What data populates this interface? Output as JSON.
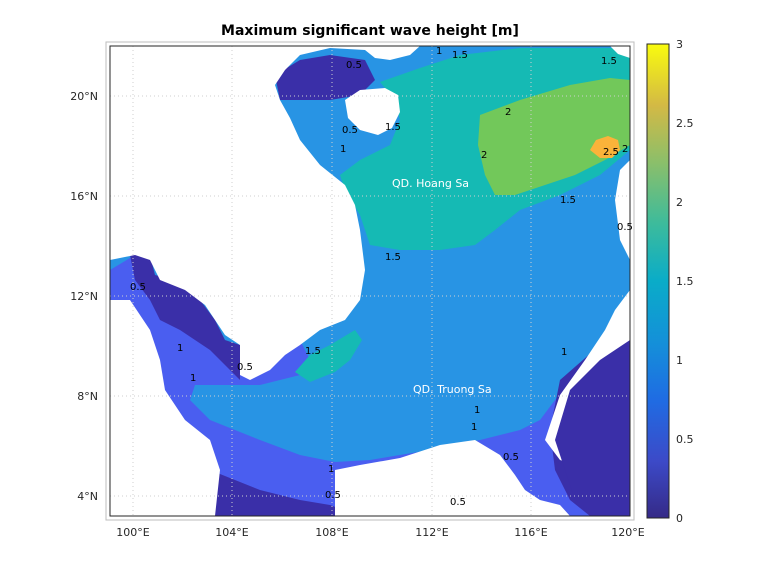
{
  "map": {
    "title": "Maximum significant wave height [m]",
    "lon_ticks": [
      "100°E",
      "104°E",
      "108°E",
      "112°E",
      "116°E",
      "120°E"
    ],
    "lat_ticks": [
      "20°N",
      "16°N",
      "12°N",
      "8°N",
      "4°N"
    ],
    "place_labels": [
      "QD. Hoang Sa",
      "QD. Truong Sa"
    ],
    "contour_labels": {
      "c05": "0.5",
      "c1": "1",
      "c15": "1.5",
      "c2": "2",
      "c25": "2.5"
    },
    "colorbar": {
      "ticks": [
        "3",
        "2.5",
        "2",
        "1.5",
        "1",
        "0.5",
        "0"
      ],
      "min": 0,
      "max": 3,
      "colormap": "parula"
    },
    "colors": {
      "land": "#ffffff",
      "level_0": "#3a2fa8",
      "level_05": "#4a5ef0",
      "level_1": "#2894e4",
      "level_15": "#15bab4",
      "level_2": "#72c85a",
      "level_25": "#fab33a",
      "frame": "#262626",
      "grid": "#cfcfcf"
    }
  }
}
